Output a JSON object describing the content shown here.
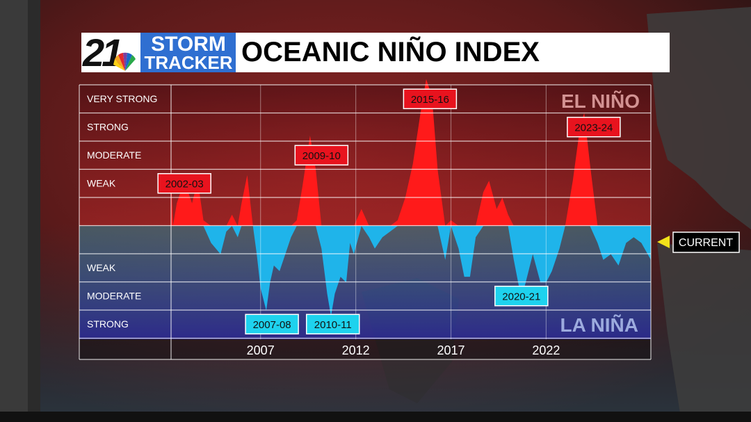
{
  "header": {
    "logo_number": "21",
    "logo_line1": "STORM",
    "logo_line2": "TRACKER",
    "title": "OCEANIC NIÑO INDEX"
  },
  "colors": {
    "el_nino": "#ff1a1a",
    "la_nina": "#1fb4ea",
    "el_nino_label_bg": "#e8131e",
    "la_nina_label_bg": "#1ed2ee",
    "current_arrow": "#f2e21a"
  },
  "chart_data": {
    "type": "area",
    "title": "OCEANIC NIÑO INDEX",
    "x_ticks": [
      "2007",
      "2012",
      "2017",
      "2022"
    ],
    "x_tick_values": [
      2007,
      2012,
      2017,
      2022
    ],
    "xlim": [
      2002.3,
      2027.5
    ],
    "ylim": [
      -2.5,
      2.5
    ],
    "grid": true,
    "strength_labels": {
      "el_nino": [
        "VERY STRONG",
        "STRONG",
        "MODERATE",
        "WEAK"
      ],
      "la_nina": [
        "WEAK",
        "MODERATE",
        "STRONG"
      ]
    },
    "phase_labels": [
      "EL NIÑO",
      "LA NIÑA"
    ],
    "series": [
      {
        "x": [
          2002.3,
          2002.4,
          2002.6,
          2003.0,
          2003.4,
          2003.7,
          2004.0,
          2004.4,
          2004.9,
          2005.2,
          2005.5,
          2005.8,
          2006.0,
          2006.3,
          2006.6,
          2006.8,
          2007.0,
          2007.3,
          2007.5,
          2007.7,
          2008.0,
          2008.3,
          2008.6,
          2008.9,
          2009.2,
          2009.6,
          2009.9,
          2010.2,
          2010.5,
          2010.7,
          2010.9,
          2011.2,
          2011.5,
          2011.7,
          2011.9,
          2012.3,
          2012.7,
          2013.0,
          2013.4,
          2013.8,
          2014.2,
          2014.6,
          2015.0,
          2015.4,
          2015.7,
          2016.0,
          2016.3,
          2016.7,
          2017.0,
          2017.4,
          2017.7,
          2018.0,
          2018.3,
          2018.7,
          2019.0,
          2019.4,
          2019.7,
          2020.0,
          2020.3,
          2020.7,
          2021.0,
          2021.3,
          2021.7,
          2022.0,
          2022.3,
          2022.7,
          2023.0,
          2023.4,
          2023.8,
          2024.0,
          2024.3,
          2024.7,
          2025.0,
          2025.4,
          2025.8,
          2026.2,
          2026.6,
          2027.0,
          2027.5
        ],
        "y": [
          0.9,
          0.0,
          0.4,
          0.8,
          0.4,
          0.8,
          0.1,
          -0.3,
          -0.5,
          -0.1,
          0.2,
          -0.2,
          0.4,
          0.9,
          0.0,
          -0.5,
          -1.1,
          -1.5,
          -1.0,
          -0.7,
          -0.8,
          -0.5,
          -0.2,
          0.1,
          0.7,
          1.6,
          1.0,
          -0.4,
          -1.2,
          -1.6,
          -1.2,
          -0.9,
          -1.0,
          -0.3,
          -0.5,
          0.3,
          -0.2,
          -0.4,
          -0.2,
          -0.1,
          0.1,
          0.5,
          1.1,
          2.0,
          2.6,
          2.3,
          1.0,
          -0.6,
          0.1,
          -0.4,
          -0.9,
          -0.9,
          -0.2,
          0.6,
          0.8,
          0.3,
          0.5,
          0.2,
          -0.6,
          -1.3,
          -0.9,
          -0.5,
          -1.0,
          -1.0,
          -0.8,
          -0.4,
          0.0,
          0.8,
          1.8,
          2.0,
          1.1,
          -0.3,
          -0.6,
          -0.5,
          -0.7,
          -0.3,
          -0.2,
          -0.3,
          -0.6
        ]
      }
    ],
    "event_labels": [
      {
        "label": "2002-03",
        "phase": "el_nino",
        "year": 2003.0,
        "strength": "WEAK"
      },
      {
        "label": "2009-10",
        "phase": "el_nino",
        "year": 2010.2,
        "strength": "MODERATE"
      },
      {
        "label": "2015-16",
        "phase": "el_nino",
        "year": 2015.9,
        "strength": "VERY STRONG"
      },
      {
        "label": "2023-24",
        "phase": "el_nino",
        "year": 2024.5,
        "strength": "STRONG"
      },
      {
        "label": "2007-08",
        "phase": "la_nina",
        "year": 2007.6,
        "strength": "STRONG"
      },
      {
        "label": "2010-11",
        "phase": "la_nina",
        "year": 2010.8,
        "strength": "STRONG"
      },
      {
        "label": "2020-21",
        "phase": "la_nina",
        "year": 2020.7,
        "strength": "MODERATE"
      }
    ],
    "current_label": "CURRENT"
  }
}
